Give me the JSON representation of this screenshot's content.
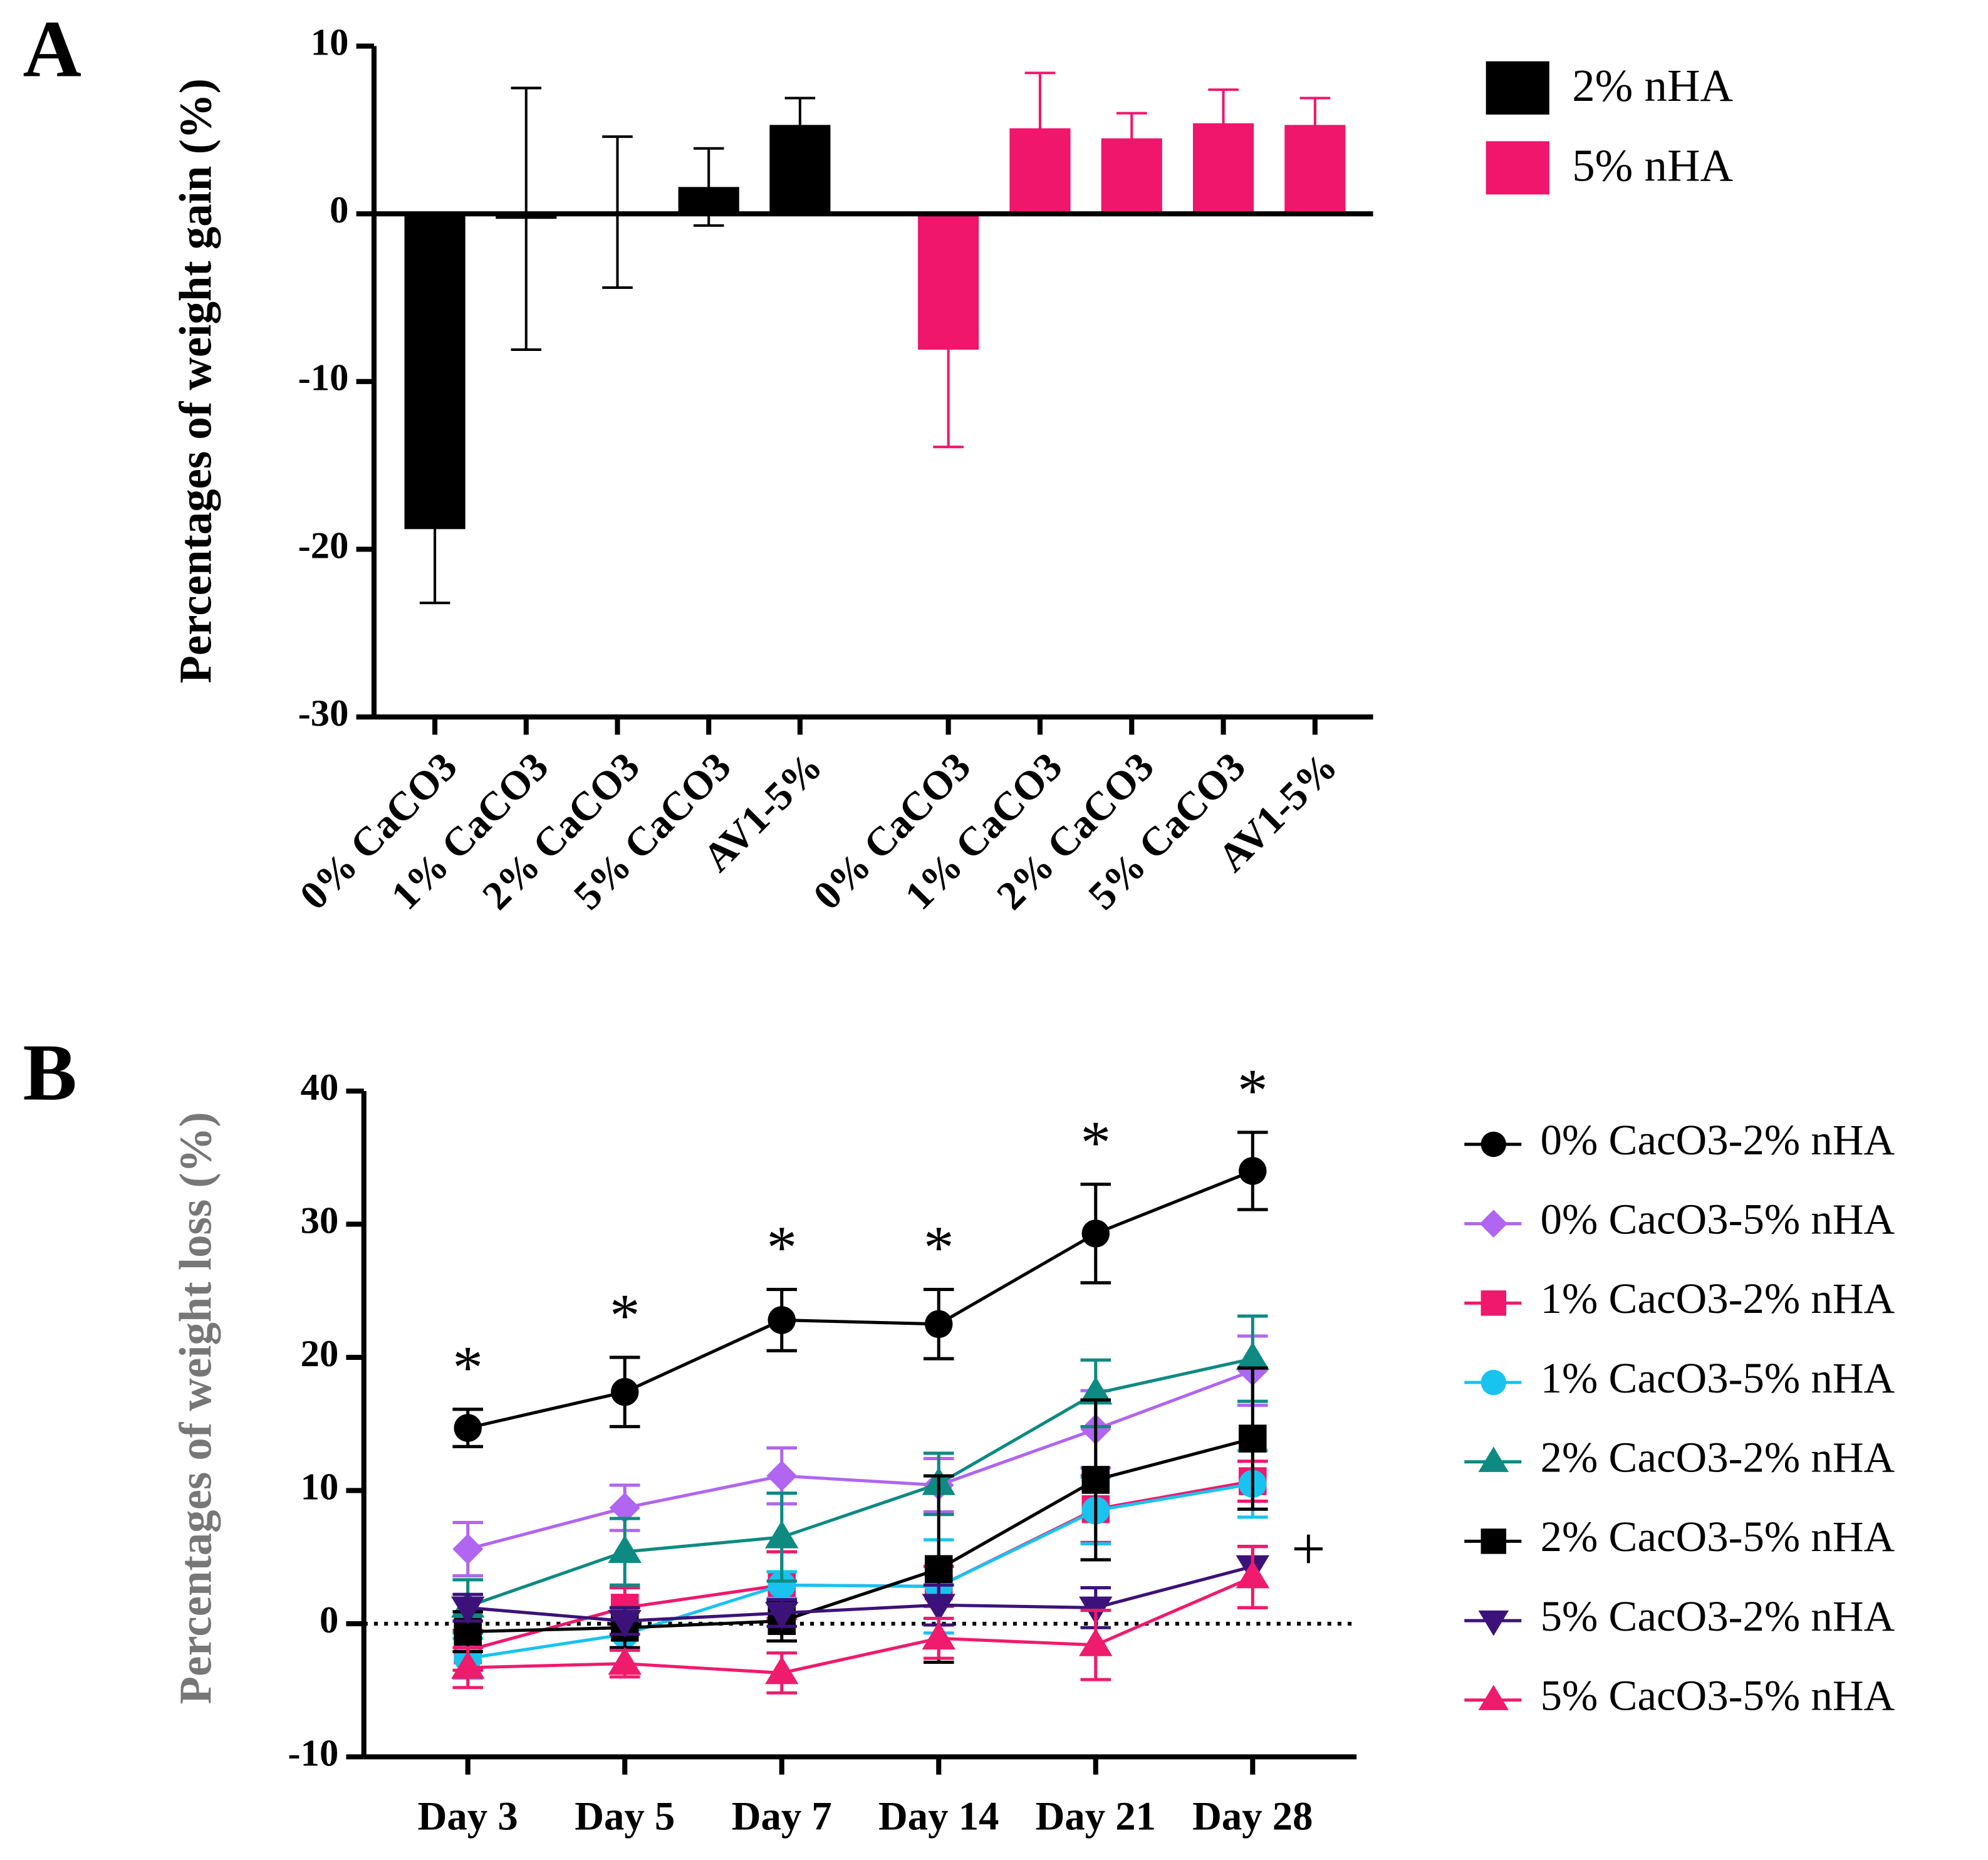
{
  "chart_data": [
    {
      "type": "bar",
      "panel": "A",
      "ylabel": "Percentages of weight gain (%)",
      "categories": [
        "0% CaCO3",
        "1% CaCO3",
        "2% CaCO3",
        "5% CaCO3",
        "AV1-5%",
        "0% CaCO3",
        "1% CaCO3",
        "2% CaCO3",
        "5% CaCO3",
        "AV1-5%"
      ],
      "series": [
        {
          "name": "2% nHA",
          "color": "#000000",
          "values": [
            -18.8,
            -0.3,
            0.1,
            1.6,
            5.3,
            null,
            null,
            null,
            null,
            null
          ],
          "errors": [
            4.4,
            7.8,
            4.5,
            2.3,
            1.6,
            null,
            null,
            null,
            null,
            null
          ]
        },
        {
          "name": "5% nHA",
          "color": "#f0166b",
          "values": [
            null,
            null,
            null,
            null,
            null,
            -8.1,
            5.1,
            4.5,
            5.4,
            5.3
          ],
          "errors": [
            null,
            null,
            null,
            null,
            null,
            5.8,
            3.3,
            1.5,
            2.0,
            1.6
          ]
        }
      ],
      "ylim": [
        -30,
        10
      ],
      "yticks": [
        -30,
        -20,
        -10,
        0,
        10
      ],
      "legend": "right"
    },
    {
      "type": "line",
      "panel": "B",
      "ylabel": "Percentages of weight loss (%)",
      "categories": [
        "Day 3",
        "Day 5",
        "Day 7",
        "Day 14",
        "Day 21",
        "Day 28"
      ],
      "series": [
        {
          "name": "0% CacO3-2% nHA",
          "color": "#000000",
          "marker": "circle",
          "values": [
            14.7,
            17.4,
            22.8,
            22.5,
            29.3,
            34.0
          ],
          "errors": [
            1.4,
            2.6,
            2.3,
            2.6,
            3.7,
            2.9
          ]
        },
        {
          "name": "0% CacO3-5% nHA",
          "color": "#b066f0",
          "marker": "diamond",
          "values": [
            5.6,
            8.7,
            11.1,
            10.4,
            14.6,
            19.0
          ],
          "errors": [
            2.0,
            1.7,
            2.1,
            2.0,
            2.9,
            2.6
          ]
        },
        {
          "name": "1% CacO3-2% nHA",
          "color": "#f0186c",
          "marker": "square",
          "values": [
            -2.0,
            1.2,
            2.9,
            2.8,
            8.6,
            10.7
          ],
          "errors": [
            1.5,
            1.5,
            2.5,
            1.5,
            2.5,
            1.5
          ]
        },
        {
          "name": "1% CacO3-5% nHA",
          "color": "#19c3f0",
          "marker": "circle",
          "values": [
            -2.6,
            -0.8,
            2.9,
            2.8,
            8.5,
            10.5
          ],
          "errors": [
            1.5,
            1.0,
            1.0,
            3.5,
            2.5,
            2.5
          ]
        },
        {
          "name": "2% CacO3-2% nHA",
          "color": "#0e8a82",
          "marker": "triangle",
          "values": [
            1.3,
            5.4,
            6.5,
            10.5,
            17.3,
            19.9
          ],
          "errors": [
            2.0,
            2.5,
            3.3,
            2.3,
            2.5,
            3.2
          ]
        },
        {
          "name": "2% CacO3-5% nHA",
          "color": "#000000",
          "marker": "square",
          "values": [
            -0.6,
            -0.3,
            0.2,
            4.1,
            10.8,
            13.9
          ],
          "errors": [
            1.5,
            1.5,
            1.5,
            7.0,
            6.0,
            5.3
          ]
        },
        {
          "name": "5% CacO3-2% nHA",
          "color": "#3c127a",
          "marker": "triangle-down",
          "values": [
            1.2,
            0.2,
            0.8,
            1.4,
            1.2,
            4.3
          ],
          "errors": [
            1.0,
            1.0,
            1.0,
            1.5,
            1.5,
            1.5
          ]
        },
        {
          "name": "5% CacO3-5% nHA",
          "color": "#ef1b6c",
          "marker": "triangle",
          "values": [
            -3.3,
            -3.0,
            -3.7,
            -1.1,
            -1.6,
            3.5
          ],
          "errors": [
            1.5,
            1.0,
            1.5,
            1.5,
            2.6,
            2.3
          ]
        }
      ],
      "annotations": [
        "*",
        "*",
        "*",
        "*",
        "*",
        "*",
        "+"
      ],
      "ylim": [
        -10,
        40
      ],
      "yticks": [
        -10,
        0,
        10,
        20,
        30,
        40
      ],
      "legend": "right"
    }
  ]
}
